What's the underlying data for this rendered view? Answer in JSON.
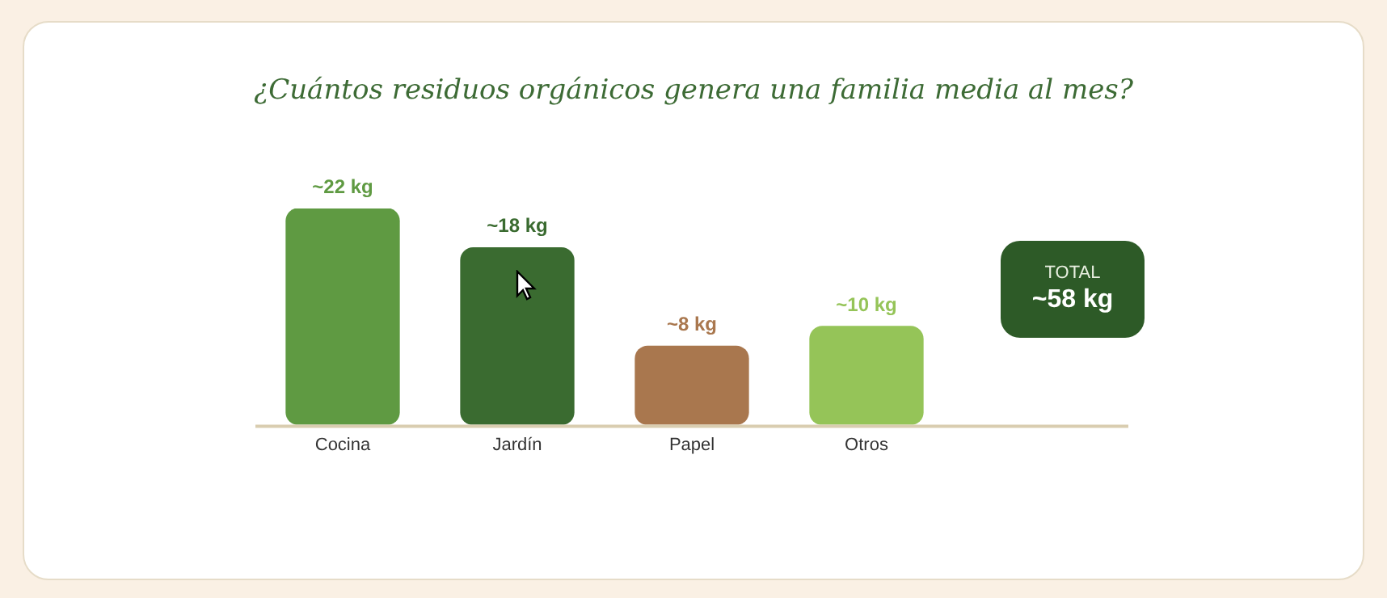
{
  "chart_data": {
    "type": "bar",
    "title": "¿Cuántos residuos orgánicos genera una familia media al mes?",
    "categories": [
      "Cocina",
      "Jardín",
      "Papel",
      "Otros"
    ],
    "values": [
      22,
      18,
      8,
      10
    ],
    "colors": [
      "#5f9a42",
      "#3a6b30",
      "#a9774e",
      "#95c458"
    ],
    "value_labels": [
      "~22 kg",
      "~18 kg",
      "~8 kg",
      "~10 kg"
    ],
    "annotations": [
      "TOTAL",
      "~58 kg"
    ],
    "legend": false
  }
}
